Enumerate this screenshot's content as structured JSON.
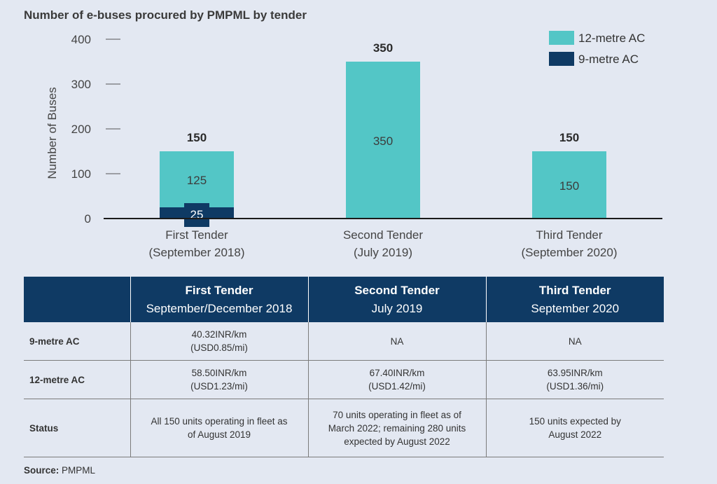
{
  "chart_data": {
    "type": "bar",
    "title": "Number of e-buses procured by PMPML by tender",
    "ylabel": "Number of Buses",
    "ylim": [
      0,
      400
    ],
    "yticks": [
      0,
      100,
      200,
      300,
      400
    ],
    "stacked": true,
    "categories": [
      {
        "line1": "First Tender",
        "line2": "(September 2018)"
      },
      {
        "line1": "Second Tender",
        "line2": "(July 2019)"
      },
      {
        "line1": "Third Tender",
        "line2": "(September 2020)"
      }
    ],
    "series": [
      {
        "name": "9-metre AC",
        "color": "#0f3a64",
        "values": [
          25,
          0,
          0
        ]
      },
      {
        "name": "12-metre AC",
        "color": "#53c6c6",
        "values": [
          125,
          350,
          150
        ]
      }
    ],
    "totals": [
      150,
      350,
      150
    ],
    "legend_order": [
      "12-metre AC",
      "9-metre AC"
    ],
    "legend_position": "top-right",
    "grid": false
  },
  "table": {
    "headers": [
      {
        "name": "",
        "date": ""
      },
      {
        "name": "First Tender",
        "date": "September/December 2018"
      },
      {
        "name": "Second Tender",
        "date": "July 2019"
      },
      {
        "name": "Third Tender",
        "date": "September 2020"
      }
    ],
    "rows": [
      {
        "label": "9-metre AC",
        "cells": [
          [
            "40.32INR/km",
            "(USD0.85/mi)"
          ],
          [
            "NA"
          ],
          [
            "NA"
          ]
        ]
      },
      {
        "label": "12-metre AC",
        "cells": [
          [
            "58.50INR/km",
            "(USD1.23/mi)"
          ],
          [
            "67.40INR/km",
            "(USD1.42/mi)"
          ],
          [
            "63.95INR/km",
            "(USD1.36/mi)"
          ]
        ]
      },
      {
        "label": "Status",
        "cells": [
          [
            "All 150 units operating in fleet as",
            "of August 2019"
          ],
          [
            "70 units operating in fleet as of",
            "March 2022; remaining 280 units",
            "expected by August 2022"
          ],
          [
            "150 units expected by",
            "August 2022"
          ]
        ]
      }
    ]
  },
  "source": {
    "label": "Source:",
    "text": "PMPML"
  }
}
